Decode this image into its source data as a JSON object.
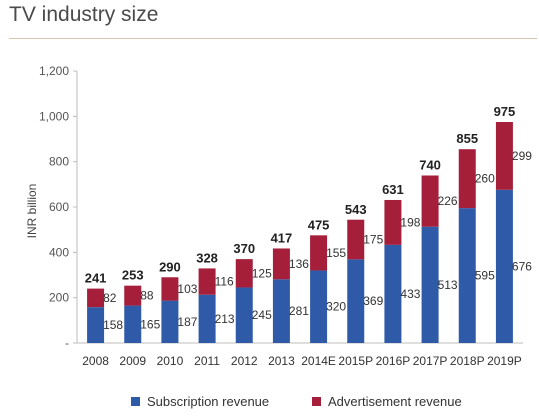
{
  "title": "TV industry size",
  "chart_data": {
    "type": "bar",
    "stacked": true,
    "categories": [
      "2008",
      "2009",
      "2010",
      "2011",
      "2012",
      "2013",
      "2014E",
      "2015P",
      "2016P",
      "2017P",
      "2018P",
      "2019P"
    ],
    "series": [
      {
        "name": "Subscription revenue",
        "color": "#2e5aa8",
        "values": [
          158,
          165,
          187,
          213,
          245,
          281,
          320,
          369,
          433,
          513,
          595,
          676
        ]
      },
      {
        "name": "Advertisement revenue",
        "color": "#a51f3b",
        "values": [
          82,
          88,
          103,
          116,
          125,
          136,
          155,
          175,
          198,
          226,
          260,
          299
        ]
      }
    ],
    "totals": [
      241,
      253,
      290,
      328,
      370,
      417,
      475,
      543,
      631,
      740,
      855,
      975
    ],
    "ylabel": "INR billion",
    "ylim": [
      0,
      1200
    ],
    "yticks": [
      0,
      200,
      400,
      600,
      800,
      1000,
      1200
    ],
    "ytick_labels": [
      "-",
      "200",
      "400",
      "600",
      "800",
      "1,000",
      "1,200"
    ],
    "grid": false,
    "legend": "bottom"
  }
}
